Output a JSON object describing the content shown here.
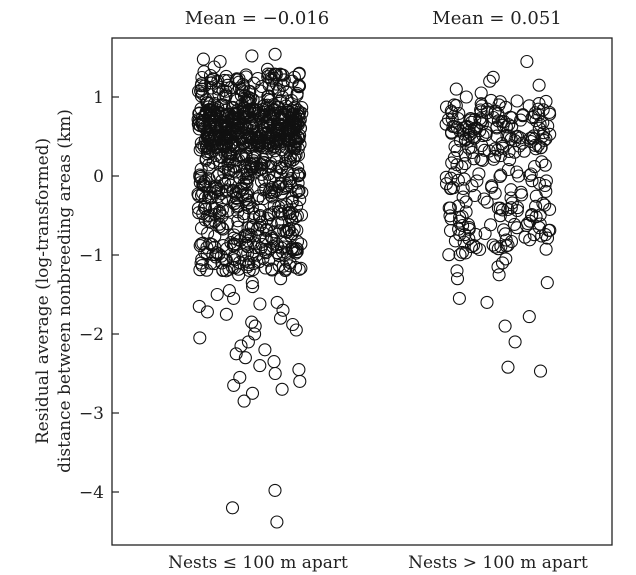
{
  "chart_data": {
    "type": "scatter",
    "title": "",
    "xlabel": "",
    "ylabel_lines": [
      "Residual average (log-transformed)",
      "distance between nonbreeding areas (km)"
    ],
    "categories": [
      "Nests ≤ 100 m apart",
      "Nests > 100 m apart"
    ],
    "means": [
      "Mean = −0.016",
      "Mean = 0.051"
    ],
    "ylim": [
      -4.6,
      1.75
    ],
    "yticks": [
      1,
      0,
      -1,
      -2,
      -3,
      -4
    ],
    "ytick_labels": [
      "1",
      "0",
      "−1",
      "−2",
      "−3",
      "−4"
    ],
    "grid": false,
    "series": [
      {
        "values": [
          1.54,
          1.52,
          1.48,
          1.45,
          1.38,
          1.35,
          1.32,
          1.3,
          1.28,
          1.25,
          1.23,
          1.2,
          1.18,
          1.15,
          -1.2,
          -1.25,
          -1.3,
          -1.35,
          -1.4,
          -1.45,
          -1.5,
          -1.55,
          -1.6,
          -1.62,
          -1.65,
          -1.7,
          -1.72,
          -1.75,
          -1.8,
          -1.85,
          -1.88,
          -1.9,
          -1.95,
          -2.0,
          -2.05,
          -2.1,
          -2.15,
          -2.2,
          -2.25,
          -2.3,
          -2.35,
          -2.4,
          -2.45,
          -2.5,
          -2.55,
          -2.6,
          -2.65,
          -2.7,
          -2.75,
          -2.85,
          -3.98,
          -4.2,
          -4.38
        ],
        "dense_range": [
          -1.2,
          1.3
        ]
      },
      {
        "values": [
          1.45,
          1.25,
          1.2,
          1.15,
          1.1,
          1.05,
          1.0,
          -1.05,
          -1.1,
          -1.15,
          -1.2,
          -1.25,
          -1.3,
          -1.35,
          -1.55,
          -1.6,
          -1.78,
          -1.9,
          -2.1,
          -2.42,
          -2.47
        ],
        "dense_range": [
          -1.0,
          1.0
        ]
      }
    ]
  }
}
